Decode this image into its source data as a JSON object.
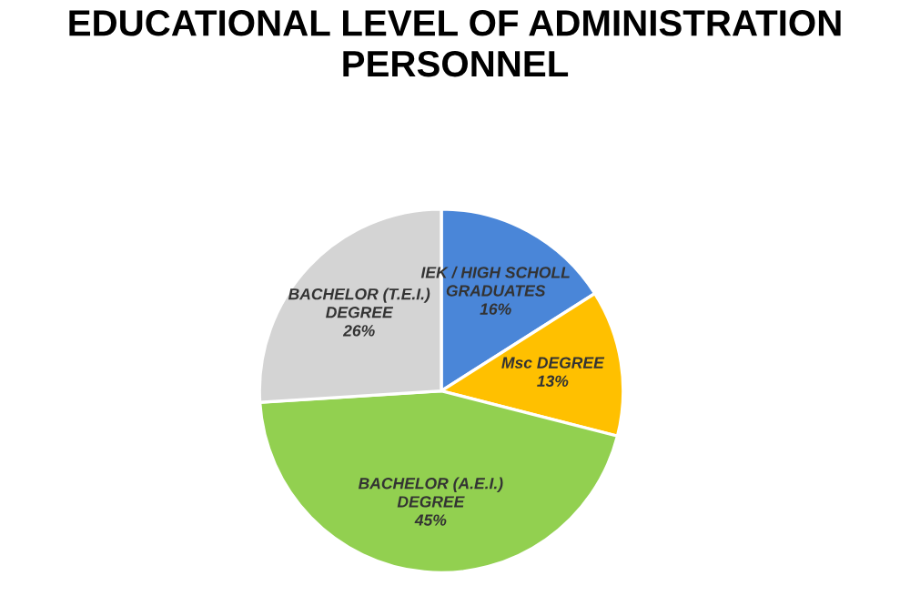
{
  "chart_data": {
    "type": "pie",
    "title": "EDUCATIONAL LEVEL OF ADMINISTRATION\nPERSONNEL",
    "categories": [
      "IEK / HIGH SCHOLL\nGRADUATES",
      "Msc DEGREE",
      "BACHELOR (A.E.I.)\nDEGREE",
      "BACHELOR (T.E.I.)\nDEGREE"
    ],
    "values": [
      16,
      13,
      45,
      26
    ],
    "value_labels": [
      "16%",
      "13%",
      "45%",
      "26%"
    ],
    "colors": [
      "#4a86d8",
      "#ffc000",
      "#92d050",
      "#d4d4d4"
    ],
    "legend": false
  }
}
